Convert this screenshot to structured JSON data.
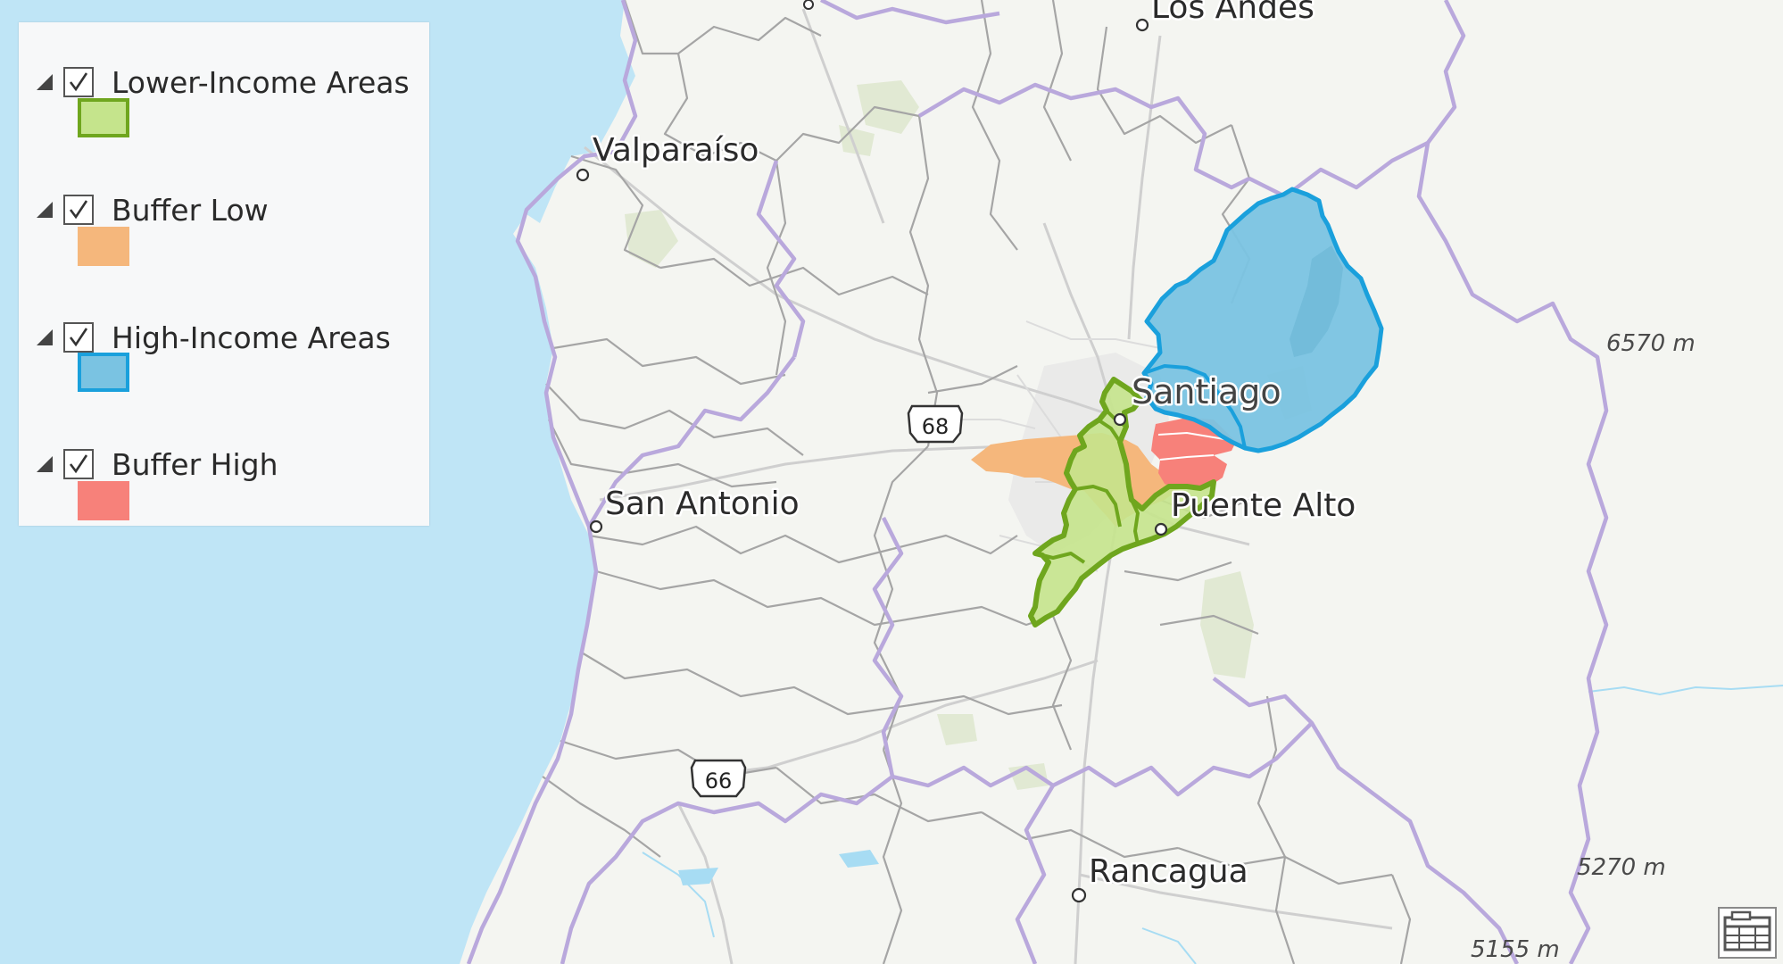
{
  "legend": {
    "layers": [
      {
        "name": "Lower-Income Areas",
        "fill": "#c5e48c",
        "stroke": "#6fa61e",
        "checked": true
      },
      {
        "name": "Buffer Low",
        "fill": "#f5b77c",
        "stroke": "#f5b77c",
        "checked": true
      },
      {
        "name": "High-Income Areas",
        "fill": "#7ac3e2",
        "stroke": "#1aa0dc",
        "checked": true
      },
      {
        "name": "Buffer High",
        "fill": "#f7817a",
        "stroke": "#f7817a",
        "checked": true
      }
    ]
  },
  "map": {
    "places": {
      "los_andes": "Los Andes",
      "valparaiso": "Valparaíso",
      "santiago": "Santiago",
      "san_antonio": "San Antonio",
      "puente_alto": "Puente Alto",
      "rancagua": "Rancagua"
    },
    "routes": {
      "r68": "68",
      "r66": "66"
    },
    "elevations": {
      "e1": "6570 m",
      "e2": "5270 m",
      "e3": "5155 m"
    },
    "colors": {
      "ocean": "#bfe5f6",
      "land": "#f4f5f1",
      "boundary": "#b7a6d8",
      "commune": "#9a9a9a",
      "road": "#c8c8c8",
      "water": "#9fd8f2",
      "park": "#dfe8d0"
    }
  },
  "toolbar": {
    "table_icon": "attribute-table-icon"
  }
}
